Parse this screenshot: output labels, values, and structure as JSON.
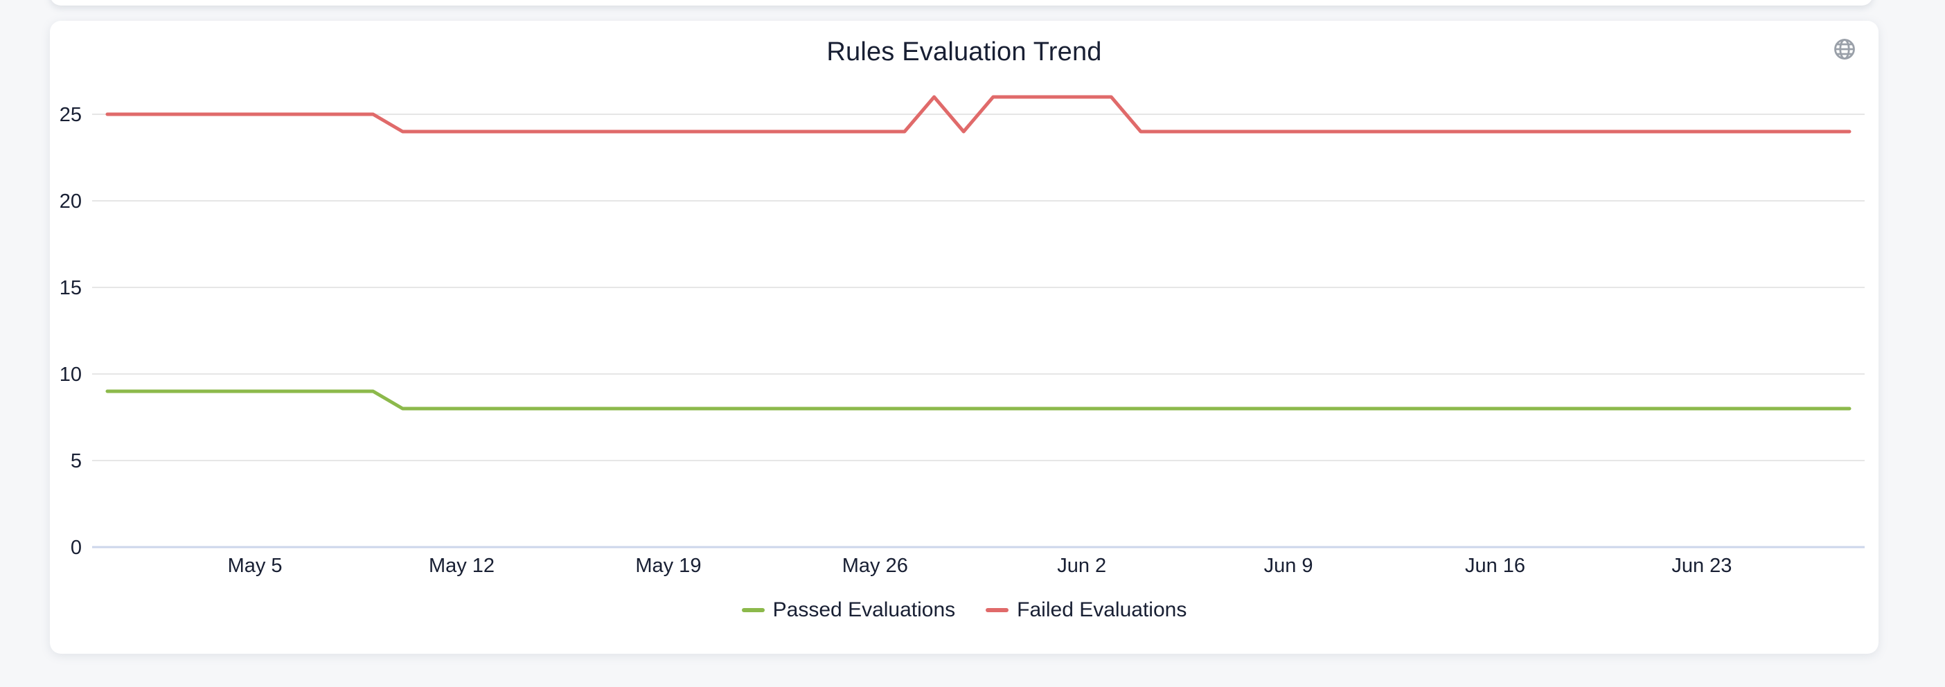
{
  "header": {
    "title": "Rules Evaluation Trend",
    "action_icon": "globe-icon"
  },
  "colors": {
    "passed_series": "#8cb94b",
    "failed_series": "#e06a6a",
    "text": "#181f33",
    "gridline": "#e6e6e6",
    "axis_line": "#ccd6eb",
    "icon": "#9aa0a9",
    "page_background": "#f6f7f9",
    "card_background": "#ffffff"
  },
  "chart_data": {
    "type": "line",
    "title": "Rules Evaluation Trend",
    "xlabel": "",
    "ylabel": "",
    "grid": true,
    "legend_position": "bottom",
    "ylim": [
      0,
      26
    ],
    "yticks": [
      0,
      5,
      10,
      15,
      20,
      25
    ],
    "x_tick_labels": [
      "May 5",
      "May 12",
      "May 19",
      "May 26",
      "Jun 2",
      "Jun 9",
      "Jun 16",
      "Jun 23"
    ],
    "x": [
      "Apr 30",
      "May 1",
      "May 2",
      "May 3",
      "May 4",
      "May 5",
      "May 6",
      "May 7",
      "May 8",
      "May 9",
      "May 10",
      "May 11",
      "May 12",
      "May 13",
      "May 14",
      "May 15",
      "May 16",
      "May 17",
      "May 18",
      "May 19",
      "May 20",
      "May 21",
      "May 22",
      "May 23",
      "May 24",
      "May 25",
      "May 26",
      "May 27",
      "May 28",
      "May 29",
      "May 30",
      "May 31",
      "Jun 1",
      "Jun 2",
      "Jun 3",
      "Jun 4",
      "Jun 5",
      "Jun 6",
      "Jun 7",
      "Jun 8",
      "Jun 9",
      "Jun 10",
      "Jun 11",
      "Jun 12",
      "Jun 13",
      "Jun 14",
      "Jun 15",
      "Jun 16",
      "Jun 17",
      "Jun 18",
      "Jun 19",
      "Jun 20",
      "Jun 21",
      "Jun 22",
      "Jun 23",
      "Jun 24",
      "Jun 25",
      "Jun 26",
      "Jun 27",
      "Jun 28"
    ],
    "series": [
      {
        "name": "Passed Evaluations",
        "color": "#8cb94b",
        "values": [
          9,
          9,
          9,
          9,
          9,
          9,
          9,
          9,
          9,
          9,
          8,
          8,
          8,
          8,
          8,
          8,
          8,
          8,
          8,
          8,
          8,
          8,
          8,
          8,
          8,
          8,
          8,
          8,
          8,
          8,
          8,
          8,
          8,
          8,
          8,
          8,
          8,
          8,
          8,
          8,
          8,
          8,
          8,
          8,
          8,
          8,
          8,
          8,
          8,
          8,
          8,
          8,
          8,
          8,
          8,
          8,
          8,
          8,
          8,
          8
        ]
      },
      {
        "name": "Failed Evaluations",
        "color": "#e06a6a",
        "values": [
          25,
          25,
          25,
          25,
          25,
          25,
          25,
          25,
          25,
          25,
          24,
          24,
          24,
          24,
          24,
          24,
          24,
          24,
          24,
          24,
          24,
          24,
          24,
          24,
          24,
          24,
          24,
          24,
          26,
          24,
          26,
          26,
          26,
          26,
          26,
          24,
          24,
          24,
          24,
          24,
          24,
          24,
          24,
          24,
          24,
          24,
          24,
          24,
          24,
          24,
          24,
          24,
          24,
          24,
          24,
          24,
          24,
          24,
          24,
          24
        ]
      }
    ]
  }
}
